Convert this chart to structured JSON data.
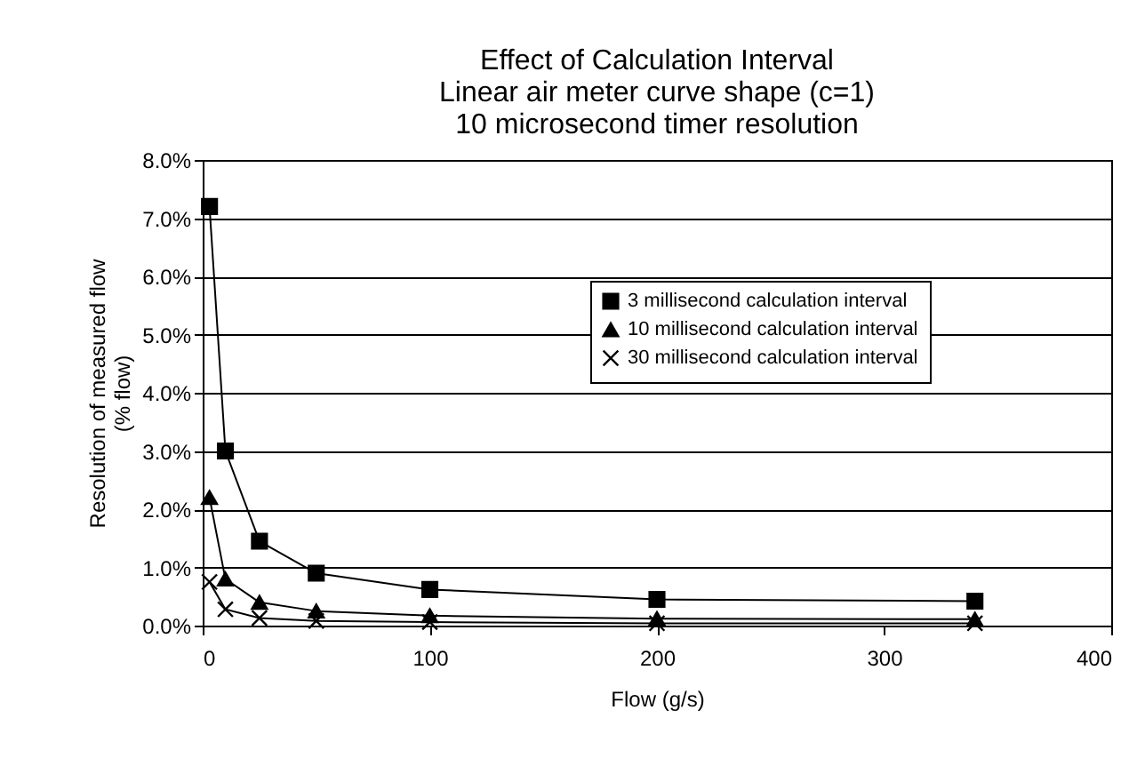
{
  "chart_data": {
    "type": "line",
    "title": "Effect of Calculation Interval\nLinear air meter curve shape (c=1)\n10 microsecond timer resolution",
    "xlabel": "Flow (g/s)",
    "ylabel": "Resolution of measured flow\n(% flow)",
    "x": [
      3,
      10,
      25,
      50,
      100,
      200,
      340
    ],
    "series": [
      {
        "name": "3 millisecond calculation interval",
        "color": "#000000",
        "marker": "square",
        "values": [
          7.2,
          3.0,
          1.45,
          0.9,
          0.62,
          0.45,
          0.42
        ]
      },
      {
        "name": "10 millisecond calculation interval",
        "color": "#000000",
        "marker": "triangle",
        "values": [
          2.2,
          0.8,
          0.4,
          0.25,
          0.17,
          0.12,
          0.11
        ]
      },
      {
        "name": "30 millisecond calculation interval",
        "color": "#000000",
        "marker": "cross",
        "values": [
          0.75,
          0.28,
          0.13,
          0.08,
          0.06,
          0.04,
          0.04
        ]
      }
    ],
    "xlim": [
      0,
      400
    ],
    "xticks": [
      0,
      100,
      200,
      300,
      400
    ],
    "ylim": [
      0,
      8
    ],
    "yticks": [
      {
        "value": 0,
        "label": "0.0%"
      },
      {
        "value": 1,
        "label": "1.0%"
      },
      {
        "value": 2,
        "label": "2.0%"
      },
      {
        "value": 3,
        "label": "3.0%"
      },
      {
        "value": 4,
        "label": "4.0%"
      },
      {
        "value": 5,
        "label": "5.0%"
      },
      {
        "value": 6,
        "label": "6.0%"
      },
      {
        "value": 7,
        "label": "7.0%"
      },
      {
        "value": 8,
        "label": "8.0%"
      }
    ],
    "grid": "y",
    "legend": "right"
  }
}
